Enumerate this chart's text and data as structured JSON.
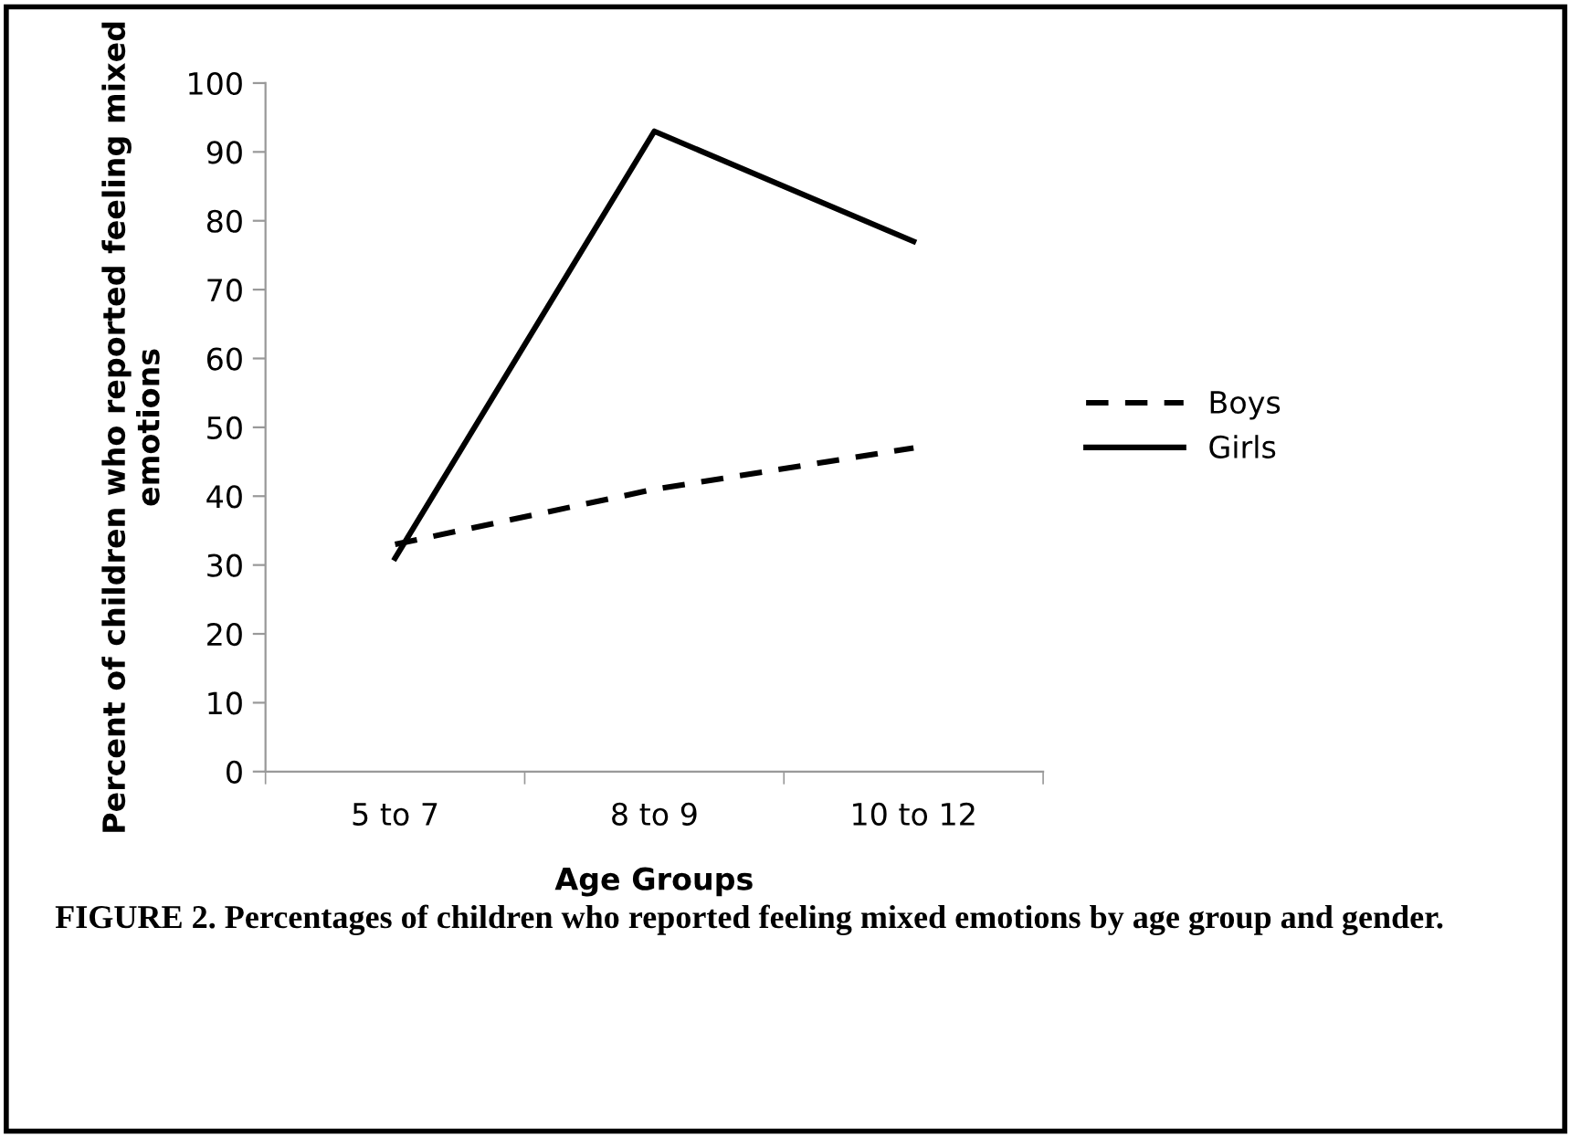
{
  "chart_data": {
    "type": "line",
    "xlabel": "Age Groups",
    "ylabel": "Percent of children who reported feeling mixed emotions",
    "categories": [
      "5 to 7",
      "8 to 9",
      "10 to 12"
    ],
    "series": [
      {
        "name": "Boys",
        "color": "#000000",
        "line_style": "dashed",
        "values": [
          33,
          41,
          47
        ]
      },
      {
        "name": "Girls",
        "color": "#000000",
        "line_style": "solid",
        "values": [
          31,
          93,
          77
        ]
      }
    ],
    "ylim": [
      0,
      100
    ],
    "yticks": [
      0,
      10,
      20,
      30,
      40,
      50,
      60,
      70,
      80,
      90,
      100
    ],
    "grid": false,
    "legend": "right",
    "annotations": [
      "FIGURE 2. Percentages of children who reported feeling mixed emotions by age group and gender."
    ]
  }
}
